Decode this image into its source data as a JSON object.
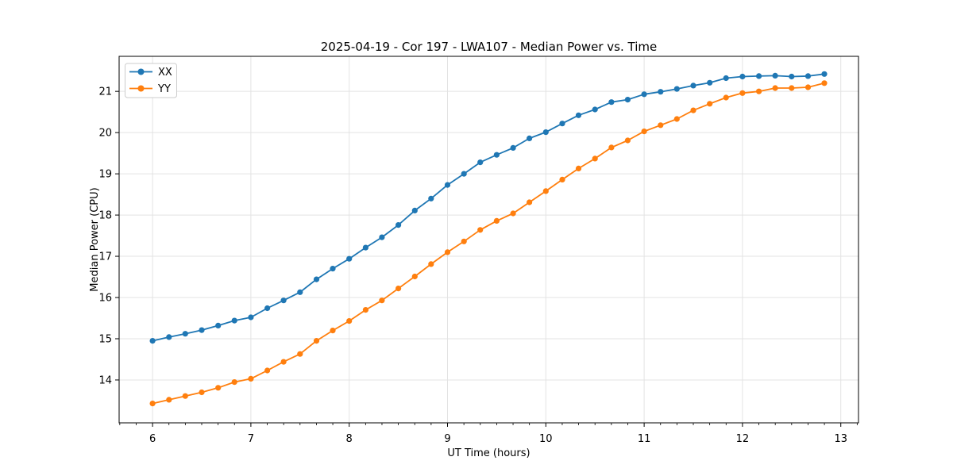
{
  "chart_data": {
    "type": "line",
    "title": "2025-04-19 - Cor 197 - LWA107 - Median Power vs. Time",
    "xlabel": "UT Time (hours)",
    "ylabel": "Median Power (CPU)",
    "xlim": [
      5.66,
      13.18
    ],
    "ylim": [
      12.96,
      21.85
    ],
    "x_ticks": [
      6,
      7,
      8,
      9,
      10,
      11,
      12,
      13
    ],
    "y_ticks": [
      14,
      15,
      16,
      17,
      18,
      19,
      20,
      21
    ],
    "x_minor_step": 0.166667,
    "grid": "major",
    "legend_position": "upper-left",
    "marker": "circle",
    "style": {
      "grid_color": "#e3e3e3",
      "spine_color": "#000000",
      "text_color": "#000000",
      "background": "#ffffff"
    },
    "series": [
      {
        "name": "XX",
        "color": "#1f77b4",
        "x": [
          6.0,
          6.167,
          6.333,
          6.5,
          6.667,
          6.833,
          7.0,
          7.167,
          7.333,
          7.5,
          7.667,
          7.833,
          8.0,
          8.167,
          8.333,
          8.5,
          8.667,
          8.833,
          9.0,
          9.167,
          9.333,
          9.5,
          9.667,
          9.833,
          10.0,
          10.167,
          10.333,
          10.5,
          10.667,
          10.833,
          11.0,
          11.167,
          11.333,
          11.5,
          11.667,
          11.833,
          12.0,
          12.167,
          12.333,
          12.5,
          12.667,
          12.833
        ],
        "y": [
          14.95,
          15.04,
          15.12,
          15.21,
          15.32,
          15.44,
          15.52,
          15.74,
          15.93,
          16.13,
          16.44,
          16.7,
          16.94,
          17.21,
          17.46,
          17.76,
          18.11,
          18.4,
          18.73,
          19.0,
          19.28,
          19.46,
          19.63,
          19.86,
          20.01,
          20.22,
          20.42,
          20.56,
          20.74,
          20.8,
          20.93,
          20.99,
          21.06,
          21.14,
          21.21,
          21.32,
          21.36,
          21.37,
          21.38,
          21.36,
          21.37,
          21.42
        ]
      },
      {
        "name": "YY",
        "color": "#ff7f0e",
        "x": [
          6.0,
          6.167,
          6.333,
          6.5,
          6.667,
          6.833,
          7.0,
          7.167,
          7.333,
          7.5,
          7.667,
          7.833,
          8.0,
          8.167,
          8.333,
          8.5,
          8.667,
          8.833,
          9.0,
          9.167,
          9.333,
          9.5,
          9.667,
          9.833,
          10.0,
          10.167,
          10.333,
          10.5,
          10.667,
          10.833,
          11.0,
          11.167,
          11.333,
          11.5,
          11.667,
          11.833,
          12.0,
          12.167,
          12.333,
          12.5,
          12.667,
          12.833
        ],
        "y": [
          13.43,
          13.52,
          13.61,
          13.7,
          13.81,
          13.95,
          14.03,
          14.23,
          14.44,
          14.63,
          14.95,
          15.2,
          15.43,
          15.7,
          15.93,
          16.22,
          16.51,
          16.81,
          17.1,
          17.36,
          17.64,
          17.86,
          18.04,
          18.31,
          18.58,
          18.86,
          19.13,
          19.37,
          19.64,
          19.81,
          20.03,
          20.18,
          20.33,
          20.54,
          20.7,
          20.85,
          20.96,
          21.0,
          21.08,
          21.08,
          21.1,
          21.2
        ]
      }
    ]
  }
}
